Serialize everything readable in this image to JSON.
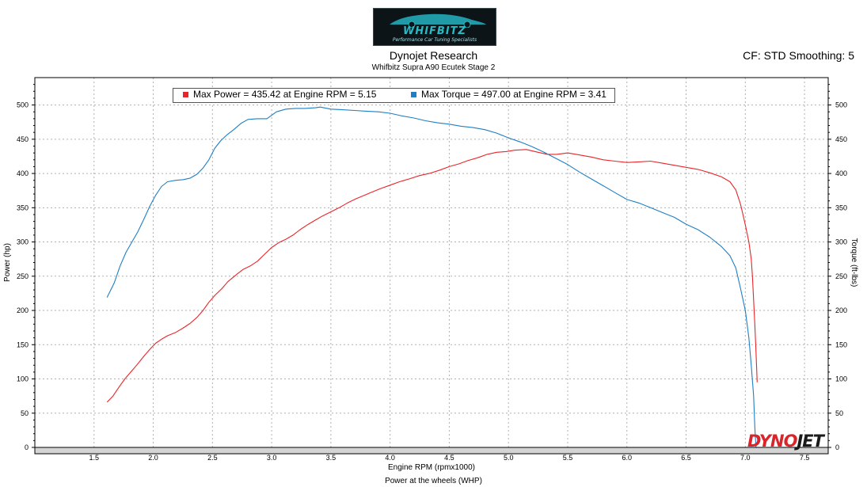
{
  "header": {
    "logo_text": "WHIFBITZ",
    "logo_tagline": "Performance Car Tuning Specialists",
    "title": "Dynojet Research",
    "subtitle": "Whifbitz Supra A90 Ecutek Stage 2",
    "cf_text": "CF: STD Smoothing: 5"
  },
  "footer": {
    "caption": "Power at the wheels (WHP)"
  },
  "brand": {
    "part1": "DYNO",
    "part2": "JET"
  },
  "legend": {
    "power_text": "Max Power = 435.42 at Engine RPM = 5.15",
    "torque_text": "Max Torque = 497.00 at Engine RPM = 3.41"
  },
  "colors": {
    "power": "#e8262a",
    "torque": "#1f7fc4"
  },
  "chart_data": {
    "type": "line",
    "xlabel": "Engine RPM (rpmx1000)",
    "ylabel": "Power (hp)",
    "y2label": "Torque (ft-lbs)",
    "xlim": [
      1.0,
      7.7
    ],
    "ylim": [
      0,
      540
    ],
    "y2lim": [
      0,
      540
    ],
    "xticks": [
      "1.5",
      "2.0",
      "2.5",
      "3.0",
      "3.5",
      "4.0",
      "4.5",
      "5.0",
      "5.5",
      "6.0",
      "6.5",
      "7.0",
      "7.5"
    ],
    "yticks": [
      "0",
      "50",
      "100",
      "150",
      "200",
      "250",
      "300",
      "350",
      "400",
      "450",
      "500"
    ],
    "grid": true,
    "legend_position": "top",
    "series": [
      {
        "name": "Power",
        "axis": "left",
        "color": "#e8262a",
        "points": [
          [
            1.61,
            66
          ],
          [
            1.66,
            75
          ],
          [
            1.71,
            88
          ],
          [
            1.76,
            100
          ],
          [
            1.81,
            110
          ],
          [
            1.86,
            120
          ],
          [
            1.92,
            133
          ],
          [
            1.97,
            143
          ],
          [
            2.02,
            152
          ],
          [
            2.07,
            158
          ],
          [
            2.12,
            163
          ],
          [
            2.19,
            168
          ],
          [
            2.25,
            174
          ],
          [
            2.31,
            181
          ],
          [
            2.37,
            190
          ],
          [
            2.42,
            200
          ],
          [
            2.47,
            212
          ],
          [
            2.52,
            222
          ],
          [
            2.58,
            232
          ],
          [
            2.63,
            242
          ],
          [
            2.7,
            252
          ],
          [
            2.76,
            260
          ],
          [
            2.82,
            265
          ],
          [
            2.88,
            272
          ],
          [
            2.94,
            282
          ],
          [
            3.0,
            292
          ],
          [
            3.06,
            299
          ],
          [
            3.12,
            304
          ],
          [
            3.18,
            310
          ],
          [
            3.24,
            318
          ],
          [
            3.31,
            326
          ],
          [
            3.37,
            332
          ],
          [
            3.43,
            338
          ],
          [
            3.5,
            344
          ],
          [
            3.57,
            350
          ],
          [
            3.64,
            357
          ],
          [
            3.71,
            363
          ],
          [
            3.78,
            368
          ],
          [
            3.85,
            373
          ],
          [
            3.92,
            378
          ],
          [
            4.0,
            383
          ],
          [
            4.08,
            388
          ],
          [
            4.16,
            392
          ],
          [
            4.25,
            397
          ],
          [
            4.33,
            400
          ],
          [
            4.42,
            405
          ],
          [
            4.5,
            410
          ],
          [
            4.58,
            414
          ],
          [
            4.66,
            419
          ],
          [
            4.74,
            423
          ],
          [
            4.82,
            428
          ],
          [
            4.9,
            431
          ],
          [
            4.98,
            432
          ],
          [
            5.05,
            434
          ],
          [
            5.15,
            435
          ],
          [
            5.25,
            431
          ],
          [
            5.33,
            428
          ],
          [
            5.41,
            428
          ],
          [
            5.5,
            430
          ],
          [
            5.6,
            427
          ],
          [
            5.7,
            424
          ],
          [
            5.8,
            420
          ],
          [
            5.9,
            418
          ],
          [
            6.0,
            416
          ],
          [
            6.1,
            417
          ],
          [
            6.2,
            418
          ],
          [
            6.3,
            415
          ],
          [
            6.4,
            412
          ],
          [
            6.5,
            409
          ],
          [
            6.6,
            406
          ],
          [
            6.7,
            401
          ],
          [
            6.8,
            395
          ],
          [
            6.87,
            388
          ],
          [
            6.92,
            376
          ],
          [
            6.96,
            355
          ],
          [
            7.0,
            325
          ],
          [
            7.03,
            300
          ],
          [
            7.05,
            275
          ],
          [
            7.06,
            250
          ],
          [
            7.07,
            215
          ],
          [
            7.08,
            180
          ],
          [
            7.09,
            140
          ],
          [
            7.1,
            95
          ]
        ]
      },
      {
        "name": "Torque",
        "axis": "right",
        "color": "#1f7fc4",
        "points": [
          [
            1.61,
            219
          ],
          [
            1.67,
            240
          ],
          [
            1.72,
            265
          ],
          [
            1.77,
            285
          ],
          [
            1.82,
            300
          ],
          [
            1.87,
            315
          ],
          [
            1.92,
            333
          ],
          [
            1.97,
            352
          ],
          [
            2.02,
            368
          ],
          [
            2.07,
            381
          ],
          [
            2.12,
            388
          ],
          [
            2.19,
            390
          ],
          [
            2.25,
            391
          ],
          [
            2.31,
            393
          ],
          [
            2.37,
            399
          ],
          [
            2.42,
            408
          ],
          [
            2.47,
            420
          ],
          [
            2.52,
            437
          ],
          [
            2.57,
            448
          ],
          [
            2.62,
            456
          ],
          [
            2.68,
            464
          ],
          [
            2.74,
            473
          ],
          [
            2.8,
            479
          ],
          [
            2.88,
            480
          ],
          [
            2.96,
            480
          ],
          [
            3.04,
            490
          ],
          [
            3.12,
            494
          ],
          [
            3.2,
            495
          ],
          [
            3.28,
            495
          ],
          [
            3.37,
            496
          ],
          [
            3.41,
            497
          ],
          [
            3.5,
            494
          ],
          [
            3.6,
            493
          ],
          [
            3.7,
            492
          ],
          [
            3.8,
            491
          ],
          [
            3.9,
            490
          ],
          [
            4.0,
            488
          ],
          [
            4.1,
            484
          ],
          [
            4.2,
            481
          ],
          [
            4.3,
            477
          ],
          [
            4.4,
            474
          ],
          [
            4.5,
            472
          ],
          [
            4.6,
            469
          ],
          [
            4.7,
            467
          ],
          [
            4.8,
            464
          ],
          [
            4.9,
            459
          ],
          [
            5.0,
            452
          ],
          [
            5.1,
            446
          ],
          [
            5.2,
            439
          ],
          [
            5.3,
            431
          ],
          [
            5.4,
            422
          ],
          [
            5.5,
            413
          ],
          [
            5.6,
            402
          ],
          [
            5.7,
            392
          ],
          [
            5.8,
            382
          ],
          [
            5.9,
            372
          ],
          [
            6.0,
            362
          ],
          [
            6.1,
            357
          ],
          [
            6.2,
            350
          ],
          [
            6.3,
            343
          ],
          [
            6.4,
            336
          ],
          [
            6.5,
            326
          ],
          [
            6.6,
            318
          ],
          [
            6.7,
            307
          ],
          [
            6.8,
            293
          ],
          [
            6.87,
            280
          ],
          [
            6.92,
            262
          ],
          [
            6.96,
            232
          ],
          [
            7.0,
            200
          ],
          [
            7.03,
            160
          ],
          [
            7.05,
            120
          ],
          [
            7.07,
            75
          ],
          [
            7.08,
            30
          ],
          [
            7.09,
            0
          ]
        ]
      }
    ]
  }
}
